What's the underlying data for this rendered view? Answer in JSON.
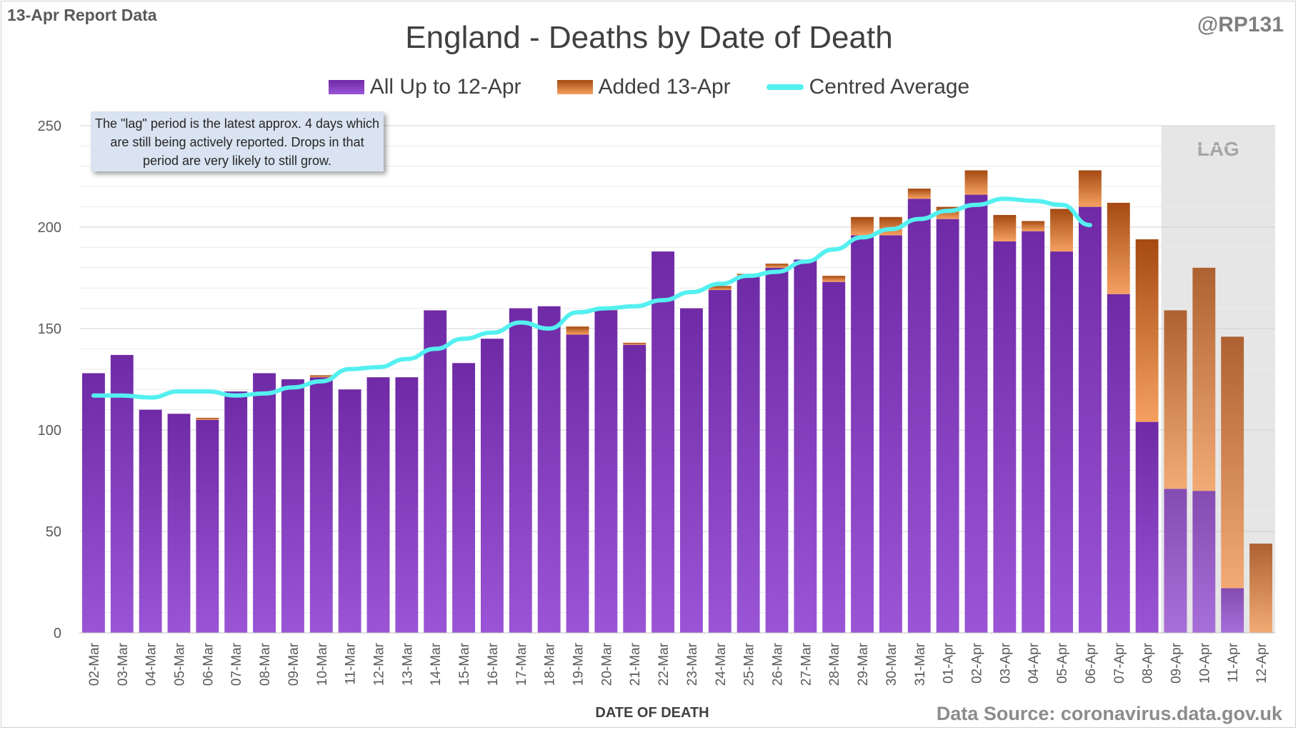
{
  "header": {
    "report_label": "13-Apr Report Data",
    "handle": "@RP131",
    "title": "England - Deaths by Date of Death",
    "source": "Data Source: coronavirus.data.gov.uk"
  },
  "legend": {
    "series_1": "All Up to 12-Apr",
    "series_2": "Added 13-Apr",
    "series_3": "Centred Average"
  },
  "note": {
    "text": "The \"lag\" period is the latest approx. 4 days which are still being actively reported. Drops in that period are very likely to still grow."
  },
  "colors": {
    "purple_top": "#6f2aa6",
    "purple_bottom": "#9a55d6",
    "orange_top": "#a44a12",
    "orange_bottom": "#f5a060",
    "average_line": "#54f0f0",
    "lag_shade": "#e6e6e6"
  },
  "chart_data": {
    "type": "bar",
    "stacked": true,
    "title": "England - Deaths by Date of Death",
    "xlabel": "DATE OF DEATH",
    "ylabel": "",
    "ylim": [
      0,
      250
    ],
    "yticks": [
      0,
      50,
      100,
      150,
      200,
      250
    ],
    "grid": true,
    "legend_position": "top",
    "lag_label": "LAG",
    "lag_categories": [
      "09-Apr",
      "10-Apr",
      "11-Apr",
      "12-Apr"
    ],
    "categories": [
      "02-Mar",
      "03-Mar",
      "04-Mar",
      "05-Mar",
      "06-Mar",
      "07-Mar",
      "08-Mar",
      "09-Mar",
      "10-Mar",
      "11-Mar",
      "12-Mar",
      "13-Mar",
      "14-Mar",
      "15-Mar",
      "16-Mar",
      "17-Mar",
      "18-Mar",
      "19-Mar",
      "20-Mar",
      "21-Mar",
      "22-Mar",
      "23-Mar",
      "24-Mar",
      "25-Mar",
      "26-Mar",
      "27-Mar",
      "28-Mar",
      "29-Mar",
      "30-Mar",
      "31-Mar",
      "01-Apr",
      "02-Apr",
      "03-Apr",
      "04-Apr",
      "05-Apr",
      "06-Apr",
      "07-Apr",
      "08-Apr",
      "09-Apr",
      "10-Apr",
      "11-Apr",
      "12-Apr"
    ],
    "series": [
      {
        "name": "All Up to 12-Apr",
        "values": [
          128,
          137,
          110,
          108,
          105,
          119,
          128,
          125,
          126,
          120,
          126,
          126,
          159,
          133,
          145,
          160,
          161,
          147,
          159,
          142,
          188,
          160,
          169,
          176,
          180,
          184,
          173,
          196,
          196,
          214,
          204,
          216,
          193,
          198,
          188,
          210,
          167,
          104,
          71,
          70,
          22,
          0
        ]
      },
      {
        "name": "Added 13-Apr",
        "values": [
          0,
          0,
          0,
          0,
          1,
          0,
          0,
          0,
          1,
          0,
          0,
          0,
          0,
          0,
          0,
          0,
          0,
          4,
          1,
          1,
          0,
          0,
          2,
          1,
          2,
          0,
          3,
          9,
          9,
          5,
          6,
          12,
          13,
          5,
          21,
          18,
          45,
          90,
          88,
          110,
          124,
          44
        ]
      },
      {
        "name": "Centred Average",
        "type": "line",
        "values": [
          117,
          117,
          116,
          119,
          119,
          117,
          118,
          121,
          124,
          130,
          131,
          135,
          140,
          145,
          148,
          153,
          150,
          158,
          160,
          161,
          164,
          168,
          172,
          176,
          178,
          183,
          189,
          195,
          199,
          204,
          208,
          211,
          214,
          213,
          211,
          201,
          null,
          null,
          null,
          null,
          null,
          null
        ]
      }
    ]
  }
}
